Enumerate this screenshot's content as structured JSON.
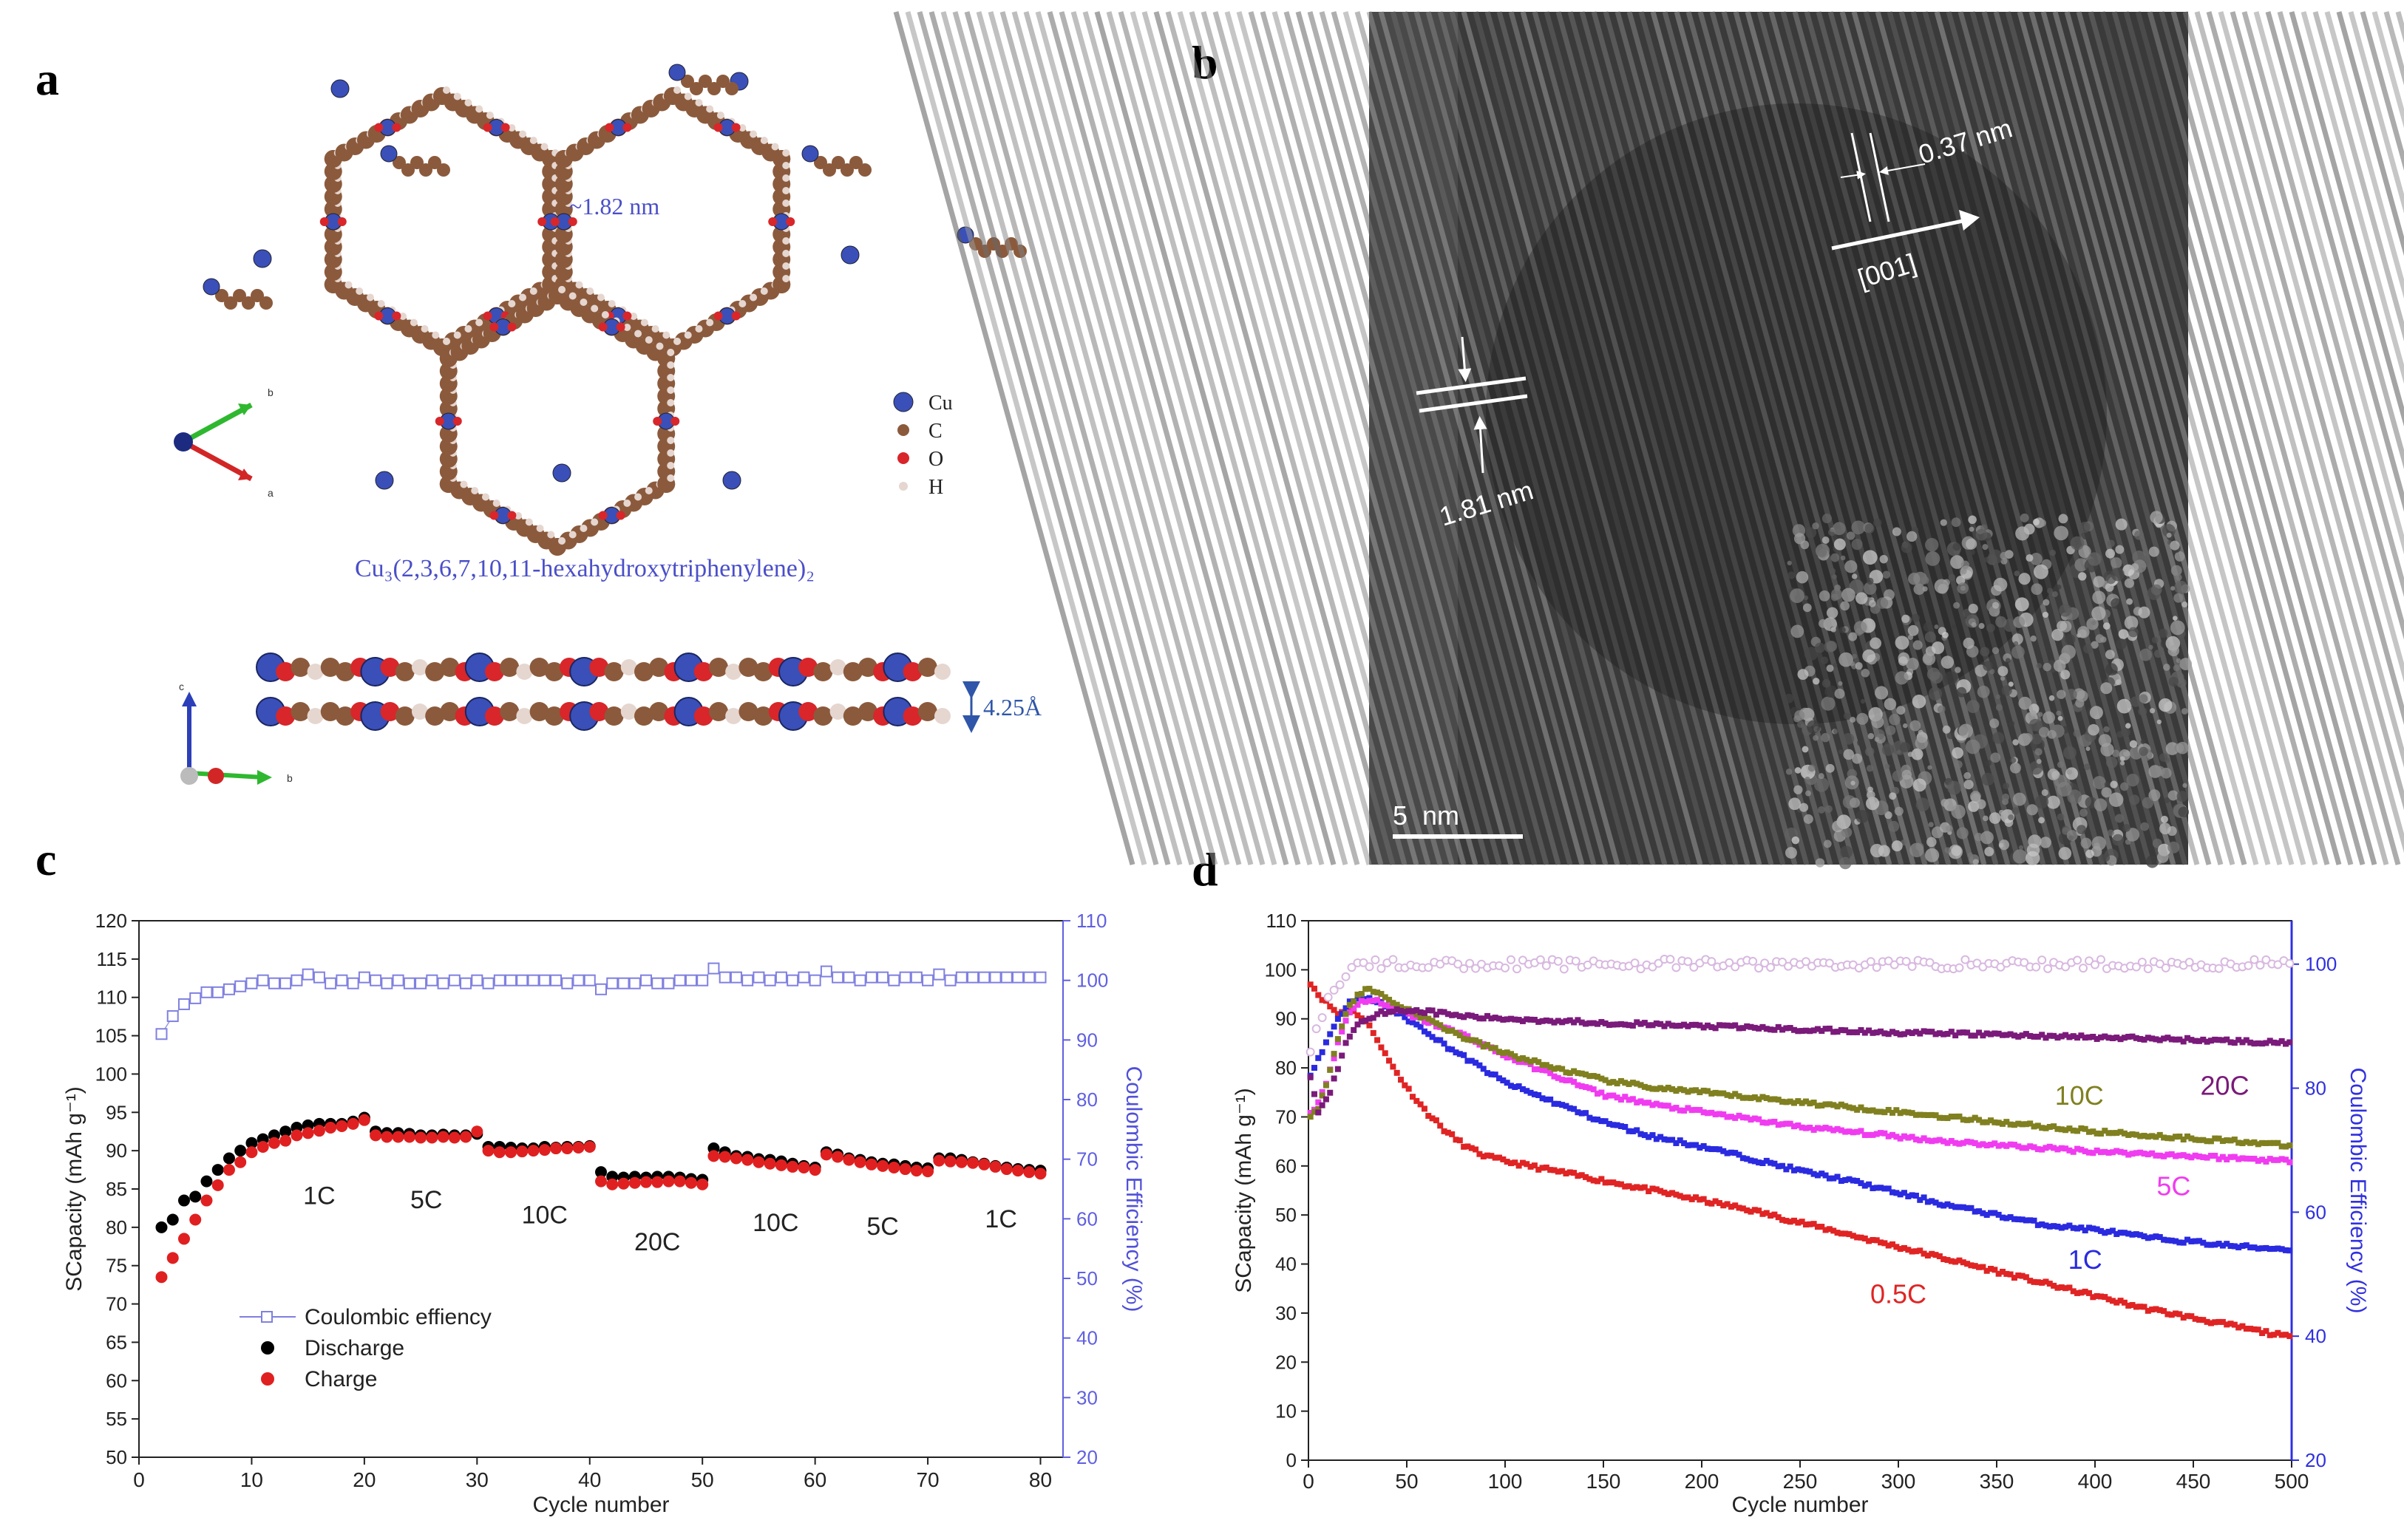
{
  "panels": {
    "a": "a",
    "b": "b",
    "c": "c",
    "d": "d"
  },
  "panel_a": {
    "pore_label": "~1.82 nm",
    "formula": "Cu₃(2,3,6,7,10,11-hexahydroxytriphenylene)₂",
    "legend": [
      {
        "label": "Cu",
        "color": "#3a4fb8"
      },
      {
        "label": "C",
        "color": "#8b5a3c"
      },
      {
        "label": "O",
        "color": "#d8262a"
      },
      {
        "label": "H",
        "color": "#e6d6d0"
      }
    ],
    "interlayer": "4.25Å",
    "axes_top": {
      "x": "a",
      "y": "b"
    },
    "axes_bottom": {
      "x": "b",
      "y": "c"
    },
    "colors": {
      "cu": "#3a4fb8",
      "c": "#8b5a3c",
      "o": "#d8262a",
      "h": "#e6d6d0",
      "label": "#4a4fc8"
    }
  },
  "panel_b": {
    "spacing_1": "0.37 nm",
    "direction": "[001]",
    "spacing_2": "1.81 nm",
    "scale_bar": "5  nm"
  },
  "chart_data": [
    {
      "id": "c",
      "type": "scatter",
      "title": "",
      "xlabel": "Cycle number",
      "ylabel": "SCapacity (mAh g⁻¹)",
      "y2label": "Coulombic Efficiency (%)",
      "xlim": [
        0,
        82
      ],
      "ylim": [
        50,
        120
      ],
      "y2lim": [
        20,
        110
      ],
      "xticks": [
        0,
        10,
        20,
        30,
        40,
        50,
        60,
        70,
        80
      ],
      "yticks": [
        50,
        55,
        60,
        65,
        70,
        75,
        80,
        85,
        90,
        95,
        100,
        105,
        110,
        115,
        120
      ],
      "y2ticks": [
        20,
        30,
        40,
        50,
        60,
        70,
        80,
        90,
        100,
        110
      ],
      "legend_position": "bottom-left",
      "series": [
        {
          "name": "Coulombic effiency",
          "axis": "y2",
          "color": "#8080e0",
          "marker": "open-square",
          "x": [
            2,
            3,
            4,
            5,
            6,
            7,
            8,
            9,
            10,
            11,
            12,
            13,
            14,
            15,
            16,
            17,
            18,
            19,
            20,
            21,
            22,
            23,
            24,
            25,
            26,
            27,
            28,
            29,
            30,
            31,
            32,
            33,
            34,
            35,
            36,
            37,
            38,
            39,
            40,
            41,
            42,
            43,
            44,
            45,
            46,
            47,
            48,
            49,
            50,
            51,
            52,
            53,
            54,
            55,
            56,
            57,
            58,
            59,
            60,
            61,
            62,
            63,
            64,
            65,
            66,
            67,
            68,
            69,
            70,
            71,
            72,
            73,
            74,
            75,
            76,
            77,
            78,
            79,
            80
          ],
          "values": [
            91,
            94,
            96,
            97,
            98,
            98,
            98.5,
            99,
            99.5,
            100,
            99.5,
            99.5,
            100,
            101,
            100.5,
            99.5,
            100,
            99.5,
            100.5,
            100,
            99.5,
            100,
            99.5,
            99.5,
            100,
            99.5,
            100,
            99.5,
            100,
            99.5,
            100,
            100,
            100,
            100,
            100,
            100,
            99.5,
            100,
            100,
            98.5,
            99.5,
            99.5,
            99.5,
            100,
            99.5,
            99.5,
            100,
            100,
            100,
            102,
            100.5,
            100.5,
            100,
            100.5,
            100,
            100.5,
            100,
            100.5,
            100,
            101.5,
            100.5,
            100.5,
            100,
            100.5,
            100.5,
            100,
            100.5,
            100.5,
            100,
            101,
            100,
            100.5,
            100.5,
            100.5,
            100.5,
            100.5,
            100.5,
            100.5,
            100.5
          ]
        },
        {
          "name": "Discharge",
          "axis": "y",
          "color": "#000000",
          "marker": "filled-circle",
          "x": [
            2,
            3,
            4,
            5,
            6,
            7,
            8,
            9,
            10,
            11,
            12,
            13,
            14,
            15,
            16,
            17,
            18,
            19,
            20,
            21,
            22,
            23,
            24,
            25,
            26,
            27,
            28,
            29,
            30,
            31,
            32,
            33,
            34,
            35,
            36,
            37,
            38,
            39,
            40,
            41,
            42,
            43,
            44,
            45,
            46,
            47,
            48,
            49,
            50,
            51,
            52,
            53,
            54,
            55,
            56,
            57,
            58,
            59,
            60,
            61,
            62,
            63,
            64,
            65,
            66,
            67,
            68,
            69,
            70,
            71,
            72,
            73,
            74,
            75,
            76,
            77,
            78,
            79,
            80
          ],
          "values": [
            80,
            81,
            83.5,
            84,
            86,
            87.5,
            89,
            90,
            91,
            91.5,
            92,
            92.5,
            93,
            93.3,
            93.5,
            93.5,
            93.5,
            93.8,
            94.3,
            92.5,
            92.3,
            92.3,
            92.2,
            92,
            92,
            92.1,
            92,
            92,
            92.2,
            90.5,
            90.5,
            90.4,
            90.3,
            90.3,
            90.5,
            90.4,
            90.5,
            90.5,
            90.6,
            87.2,
            86.6,
            86.5,
            86.6,
            86.5,
            86.6,
            86.6,
            86.5,
            86.3,
            86.2,
            90.3,
            89.8,
            89.3,
            89.2,
            88.9,
            88.8,
            88.6,
            88.3,
            88,
            87.8,
            89.8,
            89.5,
            89,
            88.8,
            88.5,
            88.3,
            88.2,
            88,
            87.8,
            87.7,
            89,
            89,
            88.8,
            88.5,
            88.3,
            88,
            87.8,
            87.6,
            87.5,
            87.4
          ]
        },
        {
          "name": "Charge",
          "axis": "y",
          "color": "#e02020",
          "marker": "filled-circle",
          "x": [
            2,
            3,
            4,
            5,
            6,
            7,
            8,
            9,
            10,
            11,
            12,
            13,
            14,
            15,
            16,
            17,
            18,
            19,
            20,
            21,
            22,
            23,
            24,
            25,
            26,
            27,
            28,
            29,
            30,
            31,
            32,
            33,
            34,
            35,
            36,
            37,
            38,
            39,
            40,
            41,
            42,
            43,
            44,
            45,
            46,
            47,
            48,
            49,
            50,
            51,
            52,
            53,
            54,
            55,
            56,
            57,
            58,
            59,
            60,
            61,
            62,
            63,
            64,
            65,
            66,
            67,
            68,
            69,
            70,
            71,
            72,
            73,
            74,
            75,
            76,
            77,
            78,
            79,
            80
          ],
          "values": [
            73.5,
            76,
            78.5,
            81,
            83.5,
            85.5,
            87.5,
            88.5,
            89.8,
            90.5,
            91,
            91.3,
            92,
            92.3,
            92.6,
            93,
            93.2,
            93.5,
            94,
            92,
            91.8,
            91.8,
            91.8,
            91.7,
            91.7,
            91.8,
            91.7,
            91.8,
            92.5,
            90,
            89.8,
            89.8,
            89.9,
            90,
            90.1,
            90.3,
            90.3,
            90.4,
            90.5,
            86,
            85.6,
            85.7,
            85.8,
            85.9,
            85.9,
            86,
            86,
            85.8,
            85.6,
            89.3,
            89.2,
            89,
            88.8,
            88.5,
            88.3,
            88.1,
            87.9,
            87.8,
            87.5,
            89.5,
            89.2,
            88.8,
            88.5,
            88.2,
            88,
            87.8,
            87.6,
            87.4,
            87.3,
            88.7,
            88.6,
            88.5,
            88.4,
            88.2,
            87.9,
            87.6,
            87.4,
            87.2,
            87
          ]
        }
      ],
      "annotations": [
        {
          "text": "1C",
          "x": 16,
          "y": 83
        },
        {
          "text": "5C",
          "x": 25.5,
          "y": 82.5
        },
        {
          "text": "10C",
          "x": 36,
          "y": 80.5
        },
        {
          "text": "20C",
          "x": 46,
          "y": 77
        },
        {
          "text": "10C",
          "x": 56.5,
          "y": 79.5
        },
        {
          "text": "5C",
          "x": 66,
          "y": 79
        },
        {
          "text": "1C",
          "x": 76.5,
          "y": 80
        }
      ]
    },
    {
      "id": "d",
      "type": "scatter",
      "title": "",
      "xlabel": "Cycle number",
      "ylabel": "SCapacity (mAh g⁻¹)",
      "y2label": "Coulombic Efficiency (%)",
      "xlim": [
        0,
        500
      ],
      "ylim": [
        0,
        110
      ],
      "y2lim": [
        20,
        107
      ],
      "xticks": [
        0,
        50,
        100,
        150,
        200,
        250,
        300,
        350,
        400,
        450,
        500
      ],
      "yticks": [
        0,
        10,
        20,
        30,
        40,
        50,
        60,
        70,
        80,
        90,
        100,
        110
      ],
      "y2ticks": [
        20,
        40,
        60,
        80,
        100
      ],
      "series": [
        {
          "name": "0.5C",
          "color": "#e02424",
          "x": [
            0,
            5,
            10,
            15,
            20,
            25,
            30,
            35,
            40,
            50,
            60,
            70,
            80,
            90,
            100,
            125,
            150,
            175,
            200,
            225,
            250,
            275,
            300,
            325,
            350,
            375,
            400,
            425,
            450,
            475,
            500
          ],
          "values": [
            98,
            95,
            93,
            91,
            92,
            91,
            89,
            86,
            82,
            76,
            71,
            67,
            64,
            62,
            61,
            59,
            57,
            55,
            53,
            51,
            48.5,
            46,
            43.5,
            41,
            38.5,
            36,
            33.5,
            31,
            29,
            27,
            25
          ]
        },
        {
          "name": "1C",
          "color": "#2a2ae0",
          "x": [
            0,
            5,
            10,
            15,
            20,
            25,
            30,
            35,
            40,
            50,
            60,
            70,
            80,
            90,
            100,
            125,
            150,
            175,
            200,
            225,
            250,
            275,
            300,
            325,
            350,
            375,
            400,
            425,
            450,
            475,
            500
          ],
          "values": [
            78,
            82,
            86,
            90,
            93,
            94.5,
            94,
            93.5,
            92.5,
            90,
            87.5,
            84.5,
            82,
            79.5,
            77,
            73,
            69,
            66,
            64,
            61.5,
            59,
            57,
            54.5,
            52,
            50,
            48,
            47,
            45.5,
            44.5,
            43.5,
            43
          ]
        },
        {
          "name": "5C",
          "color": "#f03cf0",
          "x": [
            0,
            5,
            10,
            15,
            20,
            25,
            30,
            35,
            40,
            50,
            60,
            70,
            80,
            90,
            100,
            125,
            150,
            165,
            175,
            200,
            225,
            250,
            275,
            300,
            325,
            350,
            375,
            400,
            425,
            450,
            475,
            500
          ],
          "values": [
            70,
            73,
            78,
            85,
            91,
            93,
            94,
            93.5,
            92.5,
            91,
            89.5,
            88,
            86.5,
            84.5,
            82.5,
            78.5,
            74.5,
            73.5,
            72.5,
            71,
            69.5,
            68,
            67,
            66,
            65,
            64.3,
            63.6,
            63,
            62.5,
            62,
            61.5,
            61
          ]
        },
        {
          "name": "10C",
          "color": "#808020",
          "x": [
            0,
            5,
            10,
            15,
            20,
            25,
            30,
            35,
            40,
            50,
            60,
            70,
            80,
            90,
            100,
            125,
            150,
            175,
            200,
            225,
            250,
            275,
            300,
            325,
            350,
            375,
            400,
            425,
            450,
            475,
            500
          ],
          "values": [
            70,
            72,
            78,
            86,
            92,
            95,
            96,
            95.5,
            94,
            92,
            90,
            88,
            86,
            84.5,
            83,
            80,
            77.5,
            76,
            75,
            74,
            73,
            72,
            71,
            70,
            69,
            68,
            67,
            66.3,
            65.6,
            65,
            64
          ]
        },
        {
          "name": "20C",
          "color": "#7a1a7a",
          "x": [
            0,
            5,
            10,
            15,
            20,
            25,
            30,
            35,
            40,
            50,
            60,
            70,
            80,
            90,
            100,
            125,
            150,
            175,
            200,
            225,
            250,
            275,
            300,
            325,
            350,
            375,
            400,
            425,
            450,
            475,
            500
          ],
          "values": [
            80,
            71,
            74,
            80,
            86,
            89,
            90,
            91,
            91.5,
            91.8,
            91.5,
            91,
            90.5,
            90.2,
            90,
            89.6,
            89.2,
            88.8,
            88.5,
            88.2,
            87.8,
            87.5,
            87.2,
            87,
            86.8,
            86.5,
            86.2,
            86,
            85.7,
            85.4,
            85
          ]
        },
        {
          "name": "Coulombic efficiency",
          "color": "#d8b8e0",
          "axis": "y2",
          "x": [
            0,
            5,
            10,
            20,
            30,
            50,
            100,
            150,
            200,
            250,
            300,
            350,
            400,
            450,
            500
          ],
          "values": [
            84,
            90,
            95,
            99,
            100,
            100,
            100,
            100,
            100,
            100,
            100,
            100,
            100,
            100,
            100
          ]
        }
      ],
      "labels": [
        {
          "text": "10C",
          "x": 392,
          "y": 72.5,
          "color": "#808020"
        },
        {
          "text": "20C",
          "x": 466,
          "y": 74.5,
          "color": "#7a1a7a"
        },
        {
          "text": "5C",
          "x": 440,
          "y": 54,
          "color": "#f03cf0"
        },
        {
          "text": "1C",
          "x": 395,
          "y": 39,
          "color": "#2a2ae0"
        },
        {
          "text": "0.5C",
          "x": 300,
          "y": 32,
          "color": "#e02424"
        }
      ]
    }
  ]
}
